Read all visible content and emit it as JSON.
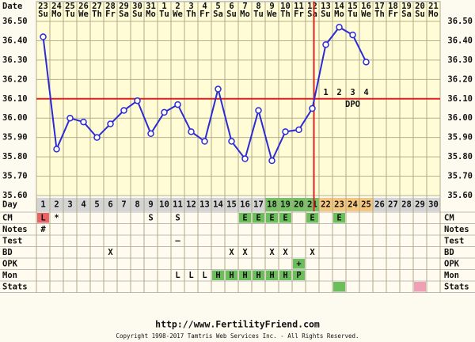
{
  "chart_data": {
    "type": "line",
    "date_label": "Date",
    "dates": [
      23,
      24,
      25,
      26,
      27,
      28,
      29,
      30,
      31,
      1,
      2,
      3,
      4,
      5,
      6,
      7,
      8,
      9,
      10,
      11,
      12,
      13,
      14,
      15,
      16,
      17,
      18,
      19,
      20,
      21
    ],
    "weekdays": [
      "Su",
      "Mo",
      "Tu",
      "We",
      "Th",
      "Fr",
      "Sa",
      "Su",
      "Mo",
      "Tu",
      "We",
      "Th",
      "Fr",
      "Sa",
      "Su",
      "Mo",
      "Tu",
      "We",
      "Th",
      "Fr",
      "Sa",
      "Su",
      "Mo",
      "Tu",
      "We",
      "Th",
      "Fr",
      "Sa",
      "Su",
      "Mo"
    ],
    "categories": [
      1,
      2,
      3,
      4,
      5,
      6,
      7,
      8,
      9,
      10,
      11,
      12,
      13,
      14,
      15,
      16,
      17,
      18,
      19,
      20,
      21,
      22,
      23,
      24,
      25,
      26,
      27,
      28,
      29,
      30
    ],
    "series": [
      {
        "color": "#2b2bd6",
        "values": [
          36.42,
          35.84,
          36.0,
          35.98,
          35.9,
          35.97,
          36.04,
          36.09,
          35.92,
          36.03,
          36.07,
          35.93,
          35.88,
          36.15,
          35.88,
          35.79,
          36.04,
          35.78,
          35.93,
          35.94,
          36.05,
          36.38,
          36.47,
          36.43,
          36.29,
          null,
          null,
          null,
          null,
          null
        ]
      }
    ],
    "ylim": [
      35.6,
      36.5
    ],
    "yticks": [
      {
        "value": 36.5,
        "label": "36.50"
      },
      {
        "value": 36.4,
        "label": "36.40"
      },
      {
        "value": 36.3,
        "label": "36.30"
      },
      {
        "value": 36.2,
        "label": "36.20"
      },
      {
        "value": 36.1,
        "label": "36.10"
      },
      {
        "value": 36.0,
        "label": "36.00"
      },
      {
        "value": 35.9,
        "label": "35.90"
      },
      {
        "value": 35.8,
        "label": "35.80"
      },
      {
        "value": 35.7,
        "label": "35.70"
      },
      {
        "value": 35.6,
        "label": "35.60"
      }
    ],
    "grid": true,
    "coverline": 36.1,
    "ovulation_day": 21,
    "marker_color": "#dd2222",
    "dpo": {
      "label": "DPO",
      "values": [
        1,
        2,
        3,
        4
      ]
    }
  },
  "table": {
    "day_row": {
      "label": "Day",
      "colors": [
        "#d4d4d4",
        "#d4d4d4",
        "#d4d4d4",
        "#d4d4d4",
        "#d4d4d4",
        "#d4d4d4",
        "#d4d4d4",
        "#d4d4d4",
        "#d4d4d4",
        "#d4d4d4",
        "#d4d4d4",
        "#d4d4d4",
        "#d4d4d4",
        "#d4d4d4",
        "#d4d4d4",
        "#d4d4d4",
        "#d4d4d4",
        "#77c066",
        "#77c066",
        "#77c066",
        "#77c066",
        "#f5c77e",
        "#f5c77e",
        "#f5c77e",
        "#f5c77e",
        "#d4d4d4",
        "#d4d4d4",
        "#d4d4d4",
        "#d4d4d4",
        "#d4d4d4"
      ]
    },
    "rows": [
      {
        "label": "CM",
        "cells": [
          {
            "text": "L",
            "color": "#e86464"
          },
          {
            "text": "*"
          },
          null,
          null,
          null,
          null,
          null,
          null,
          {
            "text": "S"
          },
          null,
          {
            "text": "S"
          },
          null,
          null,
          null,
          null,
          {
            "text": "E",
            "color": "#6cbd5c"
          },
          {
            "text": "E",
            "color": "#6cbd5c"
          },
          {
            "text": "E",
            "color": "#6cbd5c"
          },
          {
            "text": "E",
            "color": "#6cbd5c"
          },
          null,
          {
            "text": "E",
            "color": "#6cbd5c"
          },
          null,
          {
            "text": "E",
            "color": "#6cbd5c"
          },
          null,
          null,
          null,
          null,
          null,
          null,
          null
        ]
      },
      {
        "label": "Notes",
        "cells": [
          {
            "text": "#"
          },
          null,
          null,
          null,
          null,
          null,
          null,
          null,
          null,
          null,
          null,
          null,
          null,
          null,
          null,
          null,
          null,
          null,
          null,
          null,
          null,
          null,
          null,
          null,
          null,
          null,
          null,
          null,
          null,
          null
        ]
      },
      {
        "label": "Test",
        "cells": [
          null,
          null,
          null,
          null,
          null,
          null,
          null,
          null,
          null,
          null,
          {
            "text": "–"
          },
          null,
          null,
          null,
          null,
          null,
          null,
          null,
          null,
          null,
          null,
          null,
          null,
          null,
          null,
          null,
          null,
          null,
          null,
          null
        ]
      },
      {
        "label": "BD",
        "cells": [
          null,
          null,
          null,
          null,
          null,
          {
            "text": "X"
          },
          null,
          null,
          null,
          null,
          null,
          null,
          null,
          null,
          {
            "text": "X"
          },
          {
            "text": "X"
          },
          null,
          {
            "text": "X"
          },
          {
            "text": "X"
          },
          null,
          {
            "text": "X"
          },
          null,
          null,
          null,
          null,
          null,
          null,
          null,
          null,
          null
        ]
      },
      {
        "label": "OPK",
        "cells": [
          null,
          null,
          null,
          null,
          null,
          null,
          null,
          null,
          null,
          null,
          null,
          null,
          null,
          null,
          null,
          null,
          null,
          null,
          null,
          {
            "text": "+",
            "color": "#6cbd5c"
          },
          null,
          null,
          null,
          null,
          null,
          null,
          null,
          null,
          null,
          null
        ]
      },
      {
        "label": "Mon",
        "cells": [
          null,
          null,
          null,
          null,
          null,
          null,
          null,
          null,
          null,
          null,
          {
            "text": "L"
          },
          {
            "text": "L"
          },
          {
            "text": "L"
          },
          {
            "text": "H",
            "color": "#6cbd5c"
          },
          {
            "text": "H",
            "color": "#6cbd5c"
          },
          {
            "text": "H",
            "color": "#6cbd5c"
          },
          {
            "text": "H",
            "color": "#6cbd5c"
          },
          {
            "text": "H",
            "color": "#6cbd5c"
          },
          {
            "text": "H",
            "color": "#6cbd5c"
          },
          {
            "text": "P",
            "color": "#6cbd5c"
          },
          null,
          null,
          null,
          null,
          null,
          null,
          null,
          null,
          null,
          null
        ]
      },
      {
        "label": "Stats",
        "cells": [
          null,
          null,
          null,
          null,
          null,
          null,
          null,
          null,
          null,
          null,
          null,
          null,
          null,
          null,
          null,
          null,
          null,
          null,
          null,
          null,
          null,
          null,
          {
            "color": "#6cbd5c"
          },
          null,
          null,
          null,
          null,
          null,
          {
            "color": "#f0a0b4"
          },
          null
        ]
      }
    ]
  },
  "footer": {
    "url": "http://www.FertilityFriend.com",
    "copyright": "Copyright 1998-2017 Tamtris Web Services Inc. - All Rights Reserved."
  }
}
